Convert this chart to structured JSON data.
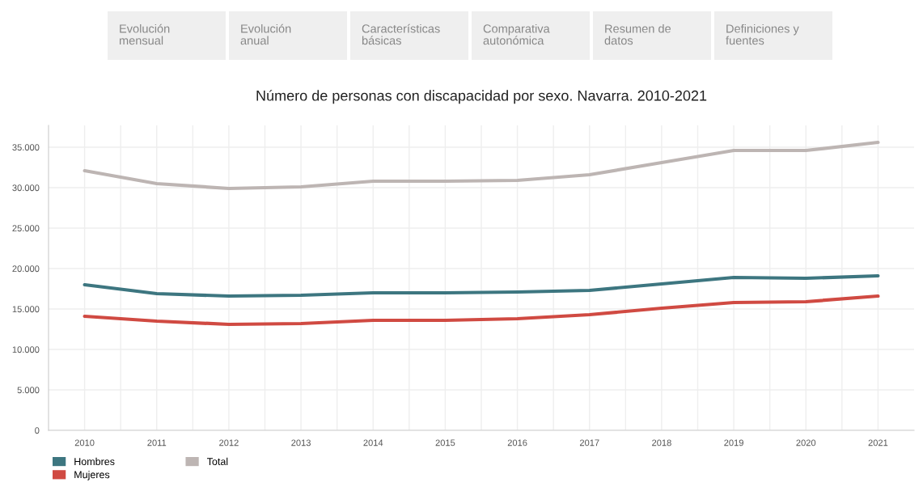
{
  "chart_data": {
    "type": "line",
    "title": "Número de personas con discapacidad por sexo. Navarra. 2010-2021",
    "annotations": [
      "Evolución\nmensual",
      "Evolución\nanual",
      "Características\nbásicas",
      "Comparativa\nautonómica",
      "Resumen de\ndatos",
      "Definiciones y\nfuentes"
    ],
    "categories": [
      "2010",
      "2011",
      "2012",
      "2013",
      "2014",
      "2015",
      "2016",
      "2017",
      "2018",
      "2019",
      "2020",
      "2021"
    ],
    "series": [
      {
        "name": "Hombres",
        "color": "#3d7680",
        "values": [
          18000,
          16900,
          16600,
          16700,
          17000,
          17000,
          17100,
          17300,
          18100,
          18900,
          18800,
          19100
        ]
      },
      {
        "name": "Mujeres",
        "color": "#d04a42",
        "values": [
          14100,
          13500,
          13100,
          13200,
          13600,
          13600,
          13800,
          14300,
          15100,
          15800,
          15900,
          16600
        ]
      },
      {
        "name": "Total",
        "color": "#bdb5b3",
        "values": [
          32100,
          30500,
          29900,
          30100,
          30800,
          30800,
          30900,
          31600,
          33100,
          34600,
          34600,
          35600
        ]
      }
    ],
    "ylim": [
      0,
      37700
    ],
    "yticks": [
      {
        "value": 0,
        "label": "0"
      },
      {
        "value": 5000,
        "label": "5.000"
      },
      {
        "value": 10000,
        "label": "10.000"
      },
      {
        "value": 15000,
        "label": "15.000"
      },
      {
        "value": 20000,
        "label": "20.000"
      },
      {
        "value": 25000,
        "label": "25.000"
      },
      {
        "value": 30000,
        "label": "30.000"
      },
      {
        "value": 35000,
        "label": "35.000"
      }
    ],
    "grid": true,
    "legend": "bottom left",
    "marker": "none",
    "line_style": "solid"
  }
}
